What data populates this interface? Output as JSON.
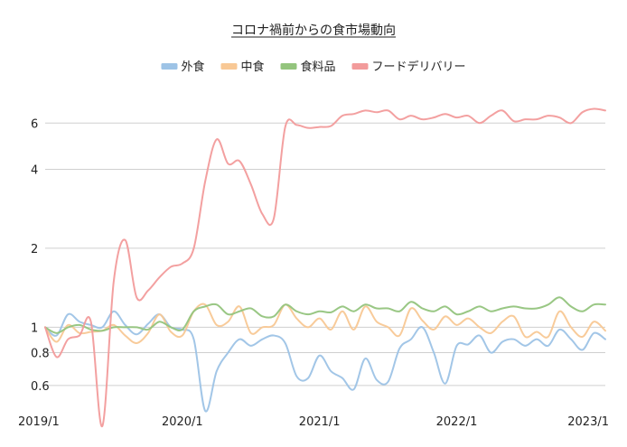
{
  "chart_data": {
    "type": "line",
    "title": "コロナ禍前からの食市場動向",
    "xlabel": "",
    "ylabel": "",
    "yscale": "log",
    "ylim": [
      0.48,
      8.0
    ],
    "grid": "horizontal",
    "legend_position": "top",
    "x_tick_labels": [
      "2019/1",
      "2020/1",
      "2021/1",
      "2022/1",
      "2023/1"
    ],
    "y_ticks": [
      0.6,
      0.8,
      1,
      2,
      4,
      6
    ],
    "y_tick_labels": [
      "0.6",
      "0.8",
      "1",
      "2",
      "4",
      "6"
    ],
    "x": [
      "2019/1",
      "2019/2",
      "2019/3",
      "2019/4",
      "2019/5",
      "2019/6",
      "2019/7",
      "2019/8",
      "2019/9",
      "2019/10",
      "2019/11",
      "2019/12",
      "2020/1",
      "2020/2",
      "2020/3",
      "2020/4",
      "2020/5",
      "2020/6",
      "2020/7",
      "2020/8",
      "2020/9",
      "2020/10",
      "2020/11",
      "2020/12",
      "2021/1",
      "2021/2",
      "2021/3",
      "2021/4",
      "2021/5",
      "2021/6",
      "2021/7",
      "2021/8",
      "2021/9",
      "2021/10",
      "2021/11",
      "2021/12",
      "2022/1",
      "2022/2",
      "2022/3",
      "2022/4",
      "2022/5",
      "2022/6",
      "2022/7",
      "2022/8",
      "2022/9",
      "2022/10",
      "2022/11",
      "2022/12",
      "2023/1",
      "2023/2"
    ],
    "series": [
      {
        "name": "外食",
        "color": "#9dc3e6",
        "values": [
          1.0,
          0.93,
          1.12,
          1.05,
          1.02,
          1.0,
          1.15,
          1.02,
          0.94,
          1.03,
          1.12,
          1.0,
          0.98,
          0.9,
          0.48,
          0.68,
          0.8,
          0.9,
          0.85,
          0.9,
          0.93,
          0.87,
          0.65,
          0.64,
          0.78,
          0.68,
          0.64,
          0.58,
          0.76,
          0.63,
          0.62,
          0.83,
          0.9,
          1.0,
          0.8,
          0.61,
          0.85,
          0.86,
          0.93,
          0.8,
          0.88,
          0.9,
          0.85,
          0.9,
          0.85,
          0.98,
          0.9,
          0.82,
          0.95,
          0.9
        ]
      },
      {
        "name": "中食",
        "color": "#f8c895",
        "values": [
          1.0,
          0.88,
          1.02,
          0.95,
          0.96,
          0.97,
          1.02,
          0.93,
          0.87,
          0.95,
          1.12,
          0.96,
          0.93,
          1.15,
          1.22,
          1.02,
          1.05,
          1.2,
          0.95,
          1.0,
          1.02,
          1.22,
          1.08,
          1.0,
          1.08,
          0.98,
          1.15,
          0.98,
          1.2,
          1.05,
          1.0,
          0.93,
          1.18,
          1.06,
          0.98,
          1.1,
          1.02,
          1.08,
          1.0,
          0.95,
          1.05,
          1.1,
          0.92,
          0.96,
          0.92,
          1.15,
          1.0,
          0.92,
          1.05,
          0.97
        ]
      },
      {
        "name": "食料品",
        "color": "#93c47d",
        "values": [
          1.0,
          0.95,
          1.0,
          1.02,
          0.98,
          0.97,
          1.0,
          1.0,
          1.0,
          0.98,
          1.05,
          1.0,
          0.98,
          1.15,
          1.2,
          1.22,
          1.12,
          1.15,
          1.18,
          1.1,
          1.1,
          1.22,
          1.15,
          1.12,
          1.15,
          1.14,
          1.2,
          1.15,
          1.22,
          1.18,
          1.18,
          1.15,
          1.25,
          1.18,
          1.15,
          1.2,
          1.12,
          1.15,
          1.2,
          1.15,
          1.18,
          1.2,
          1.18,
          1.18,
          1.22,
          1.3,
          1.2,
          1.15,
          1.22,
          1.22
        ]
      },
      {
        "name": "フードデリバリー",
        "color": "#f29b9b",
        "values": [
          1.0,
          0.77,
          0.9,
          0.93,
          1.05,
          0.42,
          1.5,
          2.15,
          1.3,
          1.38,
          1.55,
          1.7,
          1.75,
          2.0,
          3.6,
          5.2,
          4.2,
          4.3,
          3.5,
          2.7,
          2.6,
          5.8,
          5.9,
          5.75,
          5.8,
          5.85,
          6.4,
          6.5,
          6.7,
          6.6,
          6.7,
          6.2,
          6.4,
          6.2,
          6.3,
          6.5,
          6.3,
          6.4,
          6.0,
          6.4,
          6.7,
          6.1,
          6.2,
          6.2,
          6.4,
          6.3,
          6.0,
          6.6,
          6.8,
          6.7
        ]
      }
    ]
  }
}
